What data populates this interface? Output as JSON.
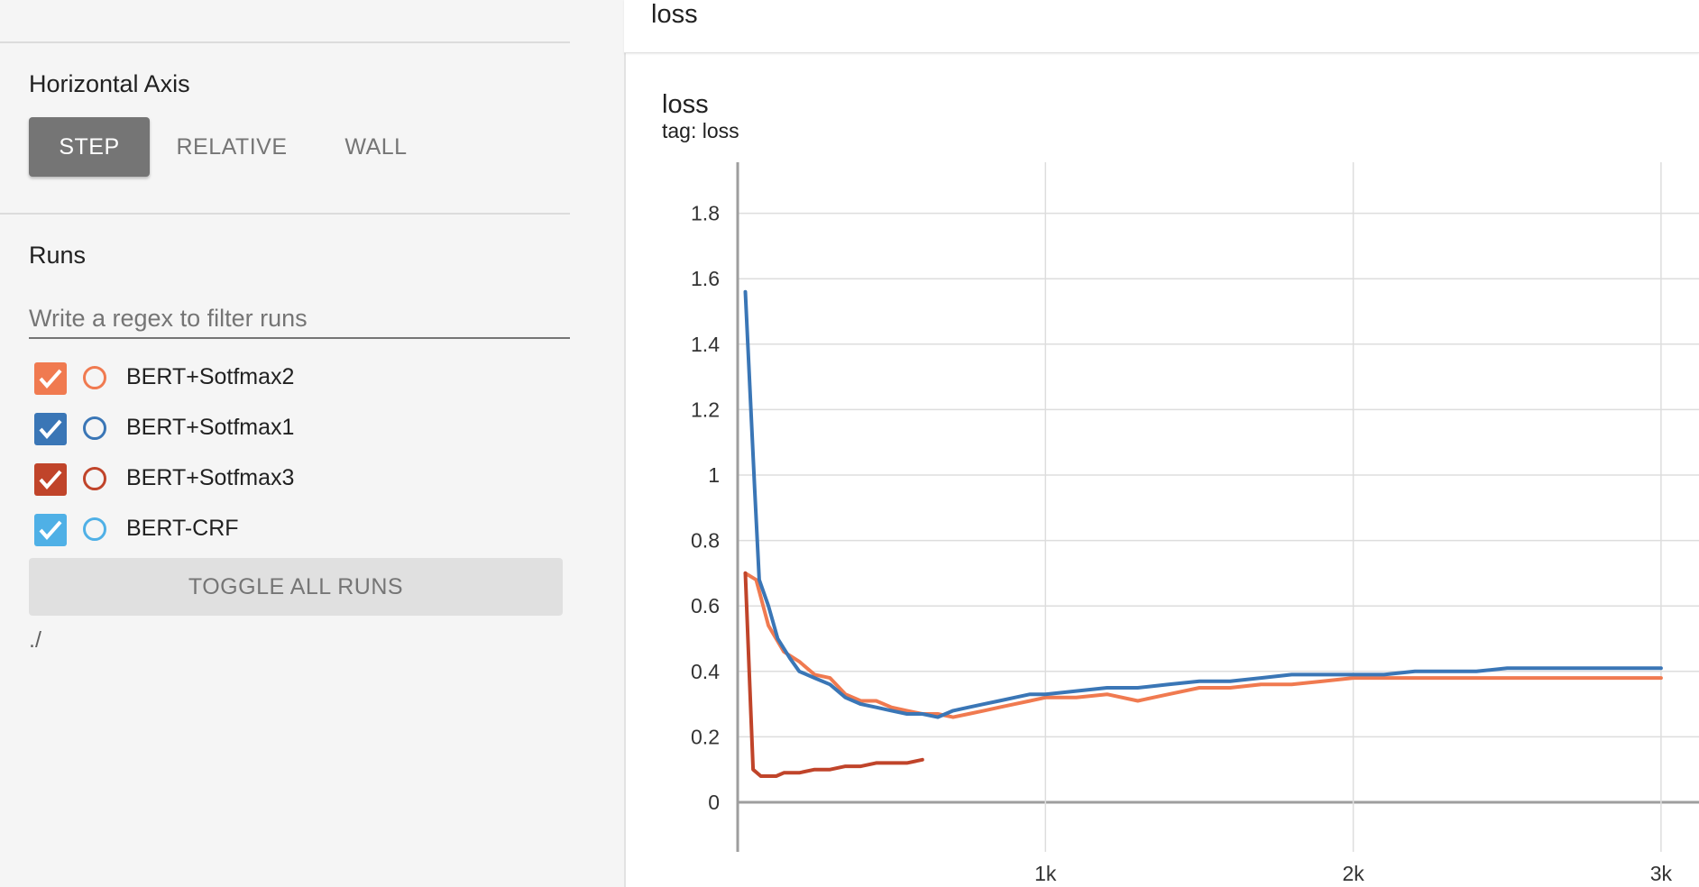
{
  "sidebar": {
    "horizontal_axis": {
      "title": "Horizontal Axis",
      "options": [
        "STEP",
        "RELATIVE",
        "WALL"
      ],
      "selected": "STEP"
    },
    "runs": {
      "title": "Runs",
      "filter_placeholder": "Write a regex to filter runs",
      "filter_value": "",
      "items": [
        {
          "label": "BERT+Sotfmax2",
          "color": "#f07a50",
          "checked": true
        },
        {
          "label": "BERT+Sotfmax1",
          "color": "#3a76b6",
          "checked": true
        },
        {
          "label": "BERT+Sotfmax3",
          "color": "#c0442a",
          "checked": true
        },
        {
          "label": "BERT-CRF",
          "color": "#4fb0e6",
          "checked": true
        }
      ],
      "toggle_all_label": "TOGGLE ALL RUNS",
      "directory": "./"
    }
  },
  "main": {
    "title": "loss",
    "card": {
      "title": "loss",
      "tag": "tag: loss"
    }
  },
  "chart_data": {
    "type": "line",
    "title": "loss",
    "subtitle": "tag: loss",
    "xlabel": "",
    "ylabel": "",
    "xlim": [
      -5,
      3100
    ],
    "ylim": [
      -0.16,
      1.98
    ],
    "x_ticks": [
      1000,
      2000,
      3000
    ],
    "x_tick_labels": [
      "1k",
      "2k",
      "3k"
    ],
    "y_ticks": [
      0,
      0.2,
      0.4,
      0.6,
      0.8,
      1,
      1.2,
      1.4,
      1.6,
      1.8
    ],
    "y_tick_labels": [
      "0",
      "0.2",
      "0.4",
      "0.6",
      "0.8",
      "1",
      "1.2",
      "1.4",
      "1.6",
      "1.8"
    ],
    "grid": true,
    "series": [
      {
        "name": "BERT+Sotfmax2",
        "color": "#f07a50",
        "x": [
          25,
          60,
          100,
          150,
          200,
          250,
          300,
          350,
          400,
          450,
          500,
          550,
          600,
          650,
          700,
          750,
          800,
          850,
          900,
          950,
          1000,
          1100,
          1200,
          1300,
          1400,
          1500,
          1600,
          1700,
          1800,
          1900,
          2000,
          2100,
          2200,
          2300,
          2400,
          2500,
          2600,
          2700,
          2800,
          2900,
          3000
        ],
        "y": [
          0.7,
          0.68,
          0.54,
          0.46,
          0.43,
          0.39,
          0.38,
          0.33,
          0.31,
          0.31,
          0.29,
          0.28,
          0.27,
          0.27,
          0.26,
          0.27,
          0.28,
          0.29,
          0.3,
          0.31,
          0.32,
          0.32,
          0.33,
          0.31,
          0.33,
          0.35,
          0.35,
          0.36,
          0.36,
          0.37,
          0.38,
          0.38,
          0.38,
          0.38,
          0.38,
          0.38,
          0.38,
          0.38,
          0.38,
          0.38,
          0.38
        ]
      },
      {
        "name": "BERT+Sotfmax1",
        "color": "#3a76b6",
        "x": [
          25,
          55,
          70,
          100,
          130,
          170,
          200,
          250,
          300,
          350,
          400,
          450,
          500,
          550,
          600,
          650,
          700,
          750,
          800,
          850,
          900,
          950,
          1000,
          1100,
          1200,
          1300,
          1400,
          1500,
          1600,
          1700,
          1800,
          1900,
          2000,
          2100,
          2200,
          2300,
          2400,
          2500,
          2600,
          2700,
          2800,
          2900,
          3000
        ],
        "y": [
          1.56,
          0.96,
          0.68,
          0.6,
          0.5,
          0.44,
          0.4,
          0.38,
          0.36,
          0.32,
          0.3,
          0.29,
          0.28,
          0.27,
          0.27,
          0.26,
          0.28,
          0.29,
          0.3,
          0.31,
          0.32,
          0.33,
          0.33,
          0.34,
          0.35,
          0.35,
          0.36,
          0.37,
          0.37,
          0.38,
          0.39,
          0.39,
          0.39,
          0.39,
          0.4,
          0.4,
          0.4,
          0.41,
          0.41,
          0.41,
          0.41,
          0.41,
          0.41
        ]
      },
      {
        "name": "BERT+Sotfmax3",
        "color": "#c0442a",
        "x": [
          25,
          50,
          75,
          100,
          125,
          150,
          200,
          250,
          300,
          350,
          400,
          450,
          500,
          550,
          600
        ],
        "y": [
          0.7,
          0.1,
          0.08,
          0.08,
          0.08,
          0.09,
          0.09,
          0.1,
          0.1,
          0.11,
          0.11,
          0.12,
          0.12,
          0.12,
          0.13
        ]
      }
    ]
  }
}
